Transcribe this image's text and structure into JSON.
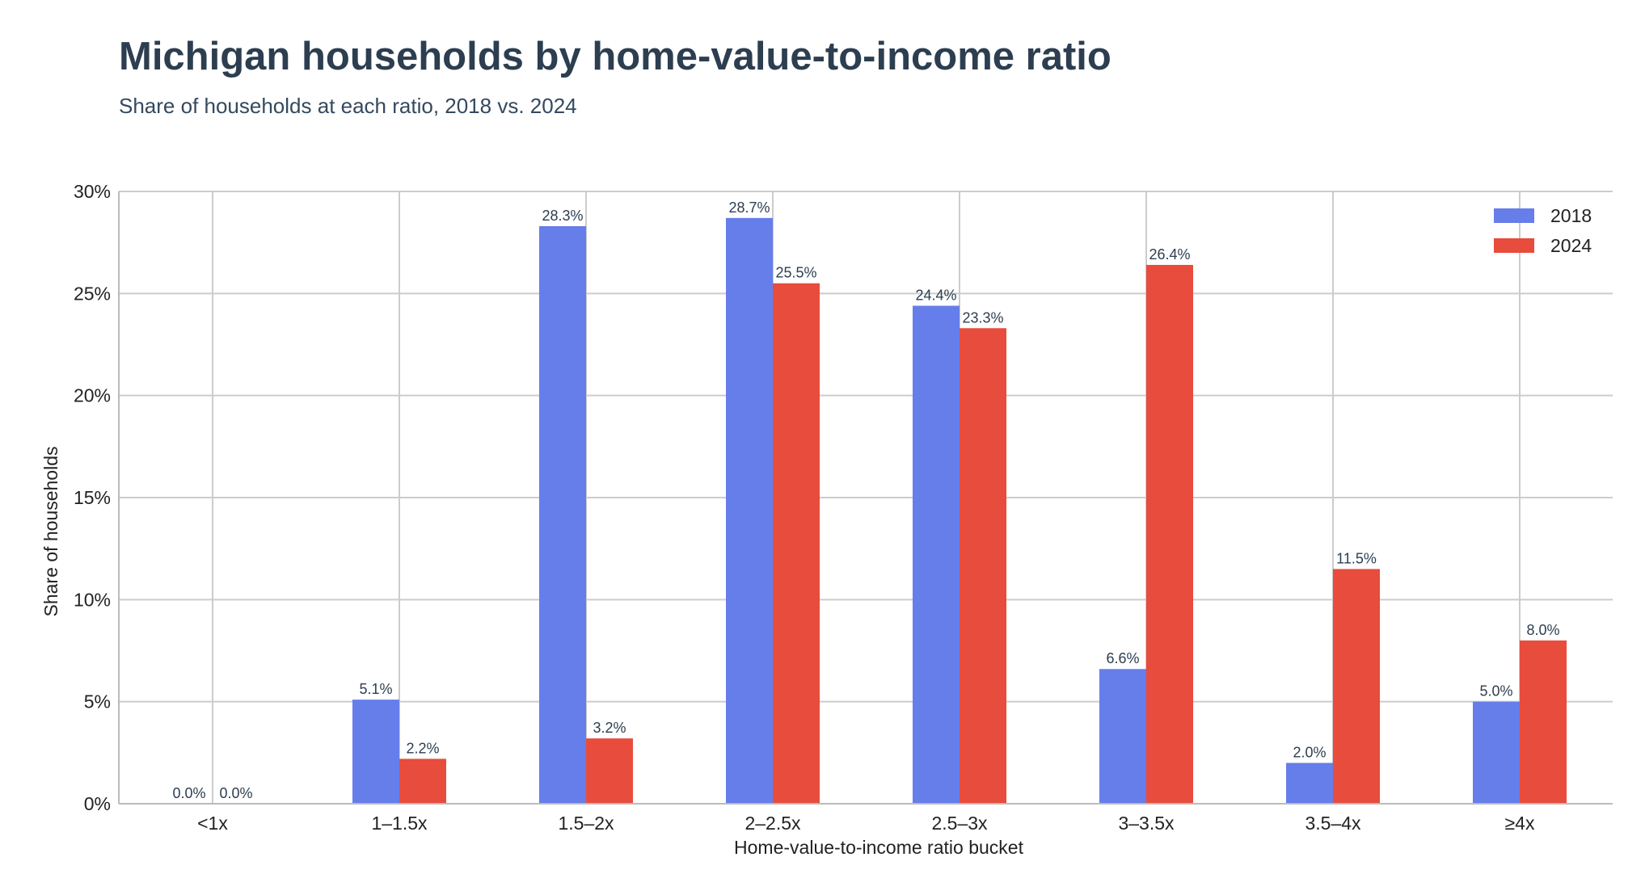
{
  "chart_data": {
    "type": "bar",
    "title": "Michigan households by home-value-to-income ratio",
    "subtitle": "Share of households at each ratio, 2018 vs. 2024",
    "xlabel": "Home-value-to-income ratio bucket",
    "ylabel": "Share of households",
    "categories": [
      "<1x",
      "1–1.5x",
      "1.5–2x",
      "2–2.5x",
      "2.5–3x",
      "3–3.5x",
      "3.5–4x",
      "≥4x"
    ],
    "series": [
      {
        "name": "2018",
        "color": "#667eea",
        "values": [
          0.0,
          5.1,
          28.3,
          28.7,
          24.4,
          6.6,
          2.0,
          5.0
        ],
        "labels": [
          "0.0%",
          "5.1%",
          "28.3%",
          "28.7%",
          "24.4%",
          "6.6%",
          "2.0%",
          "5.0%"
        ]
      },
      {
        "name": "2024",
        "color": "#e74c3c",
        "values": [
          0.0,
          2.2,
          3.2,
          25.5,
          23.3,
          26.4,
          11.5,
          8.0
        ],
        "labels": [
          "0.0%",
          "2.2%",
          "3.2%",
          "25.5%",
          "23.3%",
          "26.4%",
          "11.5%",
          "8.0%"
        ]
      }
    ],
    "ylim": [
      0,
      30
    ],
    "yticks": [
      0,
      5,
      10,
      15,
      20,
      25,
      30
    ],
    "ytick_labels": [
      "0%",
      "5%",
      "10%",
      "15%",
      "20%",
      "25%",
      "30%"
    ],
    "grid": true,
    "legend_position": "top-right"
  }
}
